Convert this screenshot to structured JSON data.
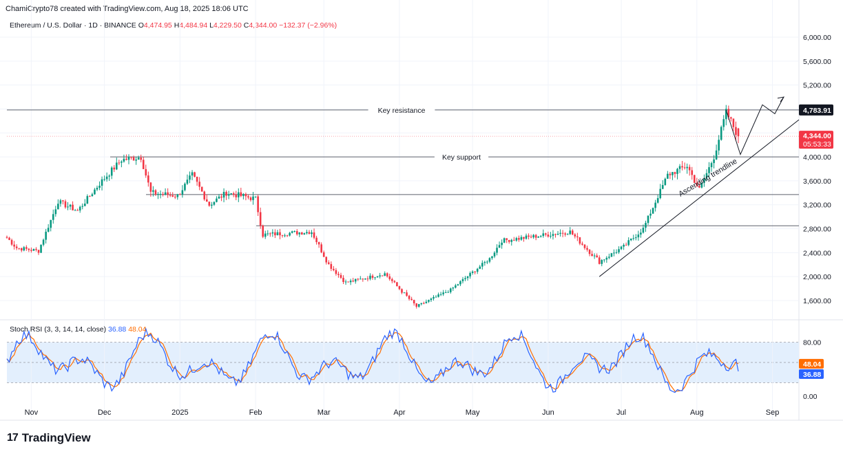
{
  "header": {
    "created_line": "ChamiCrypto78 created with TradingView.com, Aug 18, 2025 18:06 UTC"
  },
  "legend": {
    "symbol": "Ethereum / U.S. Dollar · 1D · BINANCE",
    "o_label": "O",
    "o_value": "4,474.95",
    "h_label": "H",
    "h_value": "4,484.94",
    "l_label": "L",
    "l_value": "4,229.50",
    "c_label": "C",
    "c_value": "4,344.00",
    "change": "−132.37 (−2.96%)"
  },
  "stoch_legend": {
    "name": "Stoch RSI (3, 3, 14, 14, close)",
    "k_value": "36.88",
    "d_value": "48.04"
  },
  "brand": {
    "name": "TradingView",
    "logo_text": "17"
  },
  "colors": {
    "up": "#089981",
    "down": "#f23645",
    "k_line": "#2962ff",
    "d_line": "#ff6d00",
    "band_fill": "#e3effd",
    "axis_text": "#131722"
  },
  "chart_data": [
    {
      "type": "candlestick",
      "title": "Ethereum / U.S. Dollar · 1D · BINANCE",
      "y_axis_ticks": [
        "1,600.00",
        "2,000.00",
        "2,400.00",
        "2,800.00",
        "3,200.00",
        "3,600.00",
        "4,000.00",
        "4,400.00",
        "4,800.00",
        "5,200.00",
        "5,600.00",
        "6,000.00"
      ],
      "ylim": [
        1400,
        6200
      ],
      "x_axis_labels": [
        "Nov",
        "Dec",
        "2025",
        "Feb",
        "Mar",
        "Apr",
        "May",
        "Jun",
        "Jul",
        "Aug",
        "Sep"
      ],
      "key_levels": [
        {
          "label": "Key resistance",
          "value": 4783.91,
          "price_label": "4,783.91"
        },
        {
          "label": "Key support",
          "value": 4000
        },
        {
          "label": "",
          "value": 3370
        },
        {
          "label": "",
          "value": 2850
        }
      ],
      "current_price": {
        "value": 4344.0,
        "label": "4,344.00",
        "countdown": "05:53:33"
      },
      "trendline_label": "Ascending trendline",
      "price_path_anchors": [
        {
          "date": "Oct 22",
          "close": 2650
        },
        {
          "date": "Oct 26",
          "close": 2480
        },
        {
          "date": "Nov 4",
          "close": 2430
        },
        {
          "date": "Nov 12",
          "close": 3250
        },
        {
          "date": "Nov 20",
          "close": 3100
        },
        {
          "date": "Nov 30",
          "close": 3600
        },
        {
          "date": "Dec 8",
          "close": 3950
        },
        {
          "date": "Dec 16",
          "close": 4000
        },
        {
          "date": "Dec 20",
          "close": 3400
        },
        {
          "date": "Dec 31",
          "close": 3350
        },
        {
          "date": "Jan 6",
          "close": 3700
        },
        {
          "date": "Jan 13",
          "close": 3200
        },
        {
          "date": "Jan 20",
          "close": 3400
        },
        {
          "date": "Feb 1",
          "close": 3300
        },
        {
          "date": "Feb 4",
          "close": 2700
        },
        {
          "date": "Feb 24",
          "close": 2750
        },
        {
          "date": "Mar 3",
          "close": 2200
        },
        {
          "date": "Mar 10",
          "close": 1900
        },
        {
          "date": "Mar 26",
          "close": 2050
        },
        {
          "date": "Apr 8",
          "close": 1500
        },
        {
          "date": "Apr 22",
          "close": 1780
        },
        {
          "date": "May 8",
          "close": 2300
        },
        {
          "date": "May 13",
          "close": 2600
        },
        {
          "date": "Jun 10",
          "close": 2750
        },
        {
          "date": "Jun 22",
          "close": 2250
        },
        {
          "date": "Jul 2",
          "close": 2500
        },
        {
          "date": "Jul 10",
          "close": 2800
        },
        {
          "date": "Jul 20",
          "close": 3700
        },
        {
          "date": "Jul 28",
          "close": 3850
        },
        {
          "date": "Aug 2",
          "close": 3450
        },
        {
          "date": "Aug 8",
          "close": 4000
        },
        {
          "date": "Aug 13",
          "close": 4750
        },
        {
          "date": "Aug 18",
          "close": 4344
        }
      ]
    },
    {
      "type": "line",
      "title": "Stoch RSI (3, 3, 14, 14, close)",
      "y_axis_ticks": [
        "0.00",
        "80.00"
      ],
      "ylim": [
        -5,
        105
      ],
      "band": [
        20,
        80
      ],
      "series": [
        {
          "name": "K",
          "last_value": 36.88
        },
        {
          "name": "D",
          "last_value": 48.04
        }
      ]
    }
  ]
}
